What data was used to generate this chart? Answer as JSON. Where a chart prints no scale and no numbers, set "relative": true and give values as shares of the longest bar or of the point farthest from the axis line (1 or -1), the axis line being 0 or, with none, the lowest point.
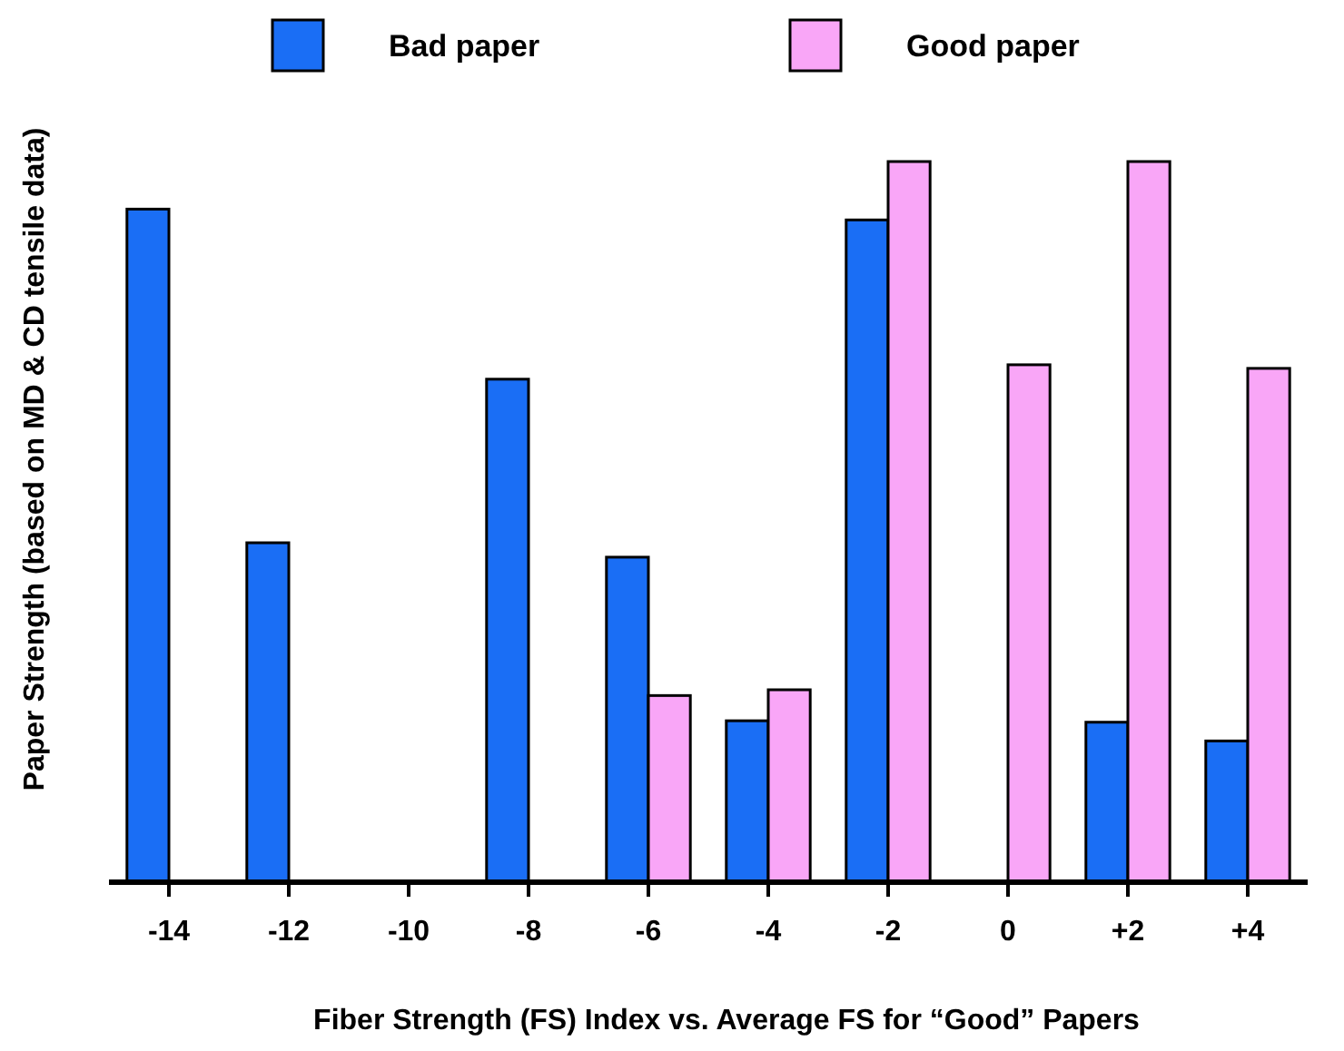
{
  "chart_data": {
    "type": "bar",
    "relative": true,
    "xlabel": "Fiber Strength (FS) Index vs. Average FS for “Good” Papers",
    "ylabel": "Paper Strength (based on MD & CD tensile data)",
    "categories": [
      "-14",
      "-12",
      "-10",
      "-8",
      "-6",
      "-4",
      "-2",
      "0",
      "+2",
      "+4"
    ],
    "legend": "top",
    "series": [
      {
        "name": "Bad paper",
        "color": "#1a6ef5",
        "values": [
          0.934,
          0.471,
          null,
          0.698,
          0.451,
          0.224,
          0.919,
          null,
          0.222,
          0.196
        ]
      },
      {
        "name": "Good paper",
        "color": "#f9a6f7",
        "values": [
          null,
          null,
          null,
          null,
          0.259,
          0.267,
          1,
          0.718,
          1,
          0.713
        ]
      }
    ]
  }
}
